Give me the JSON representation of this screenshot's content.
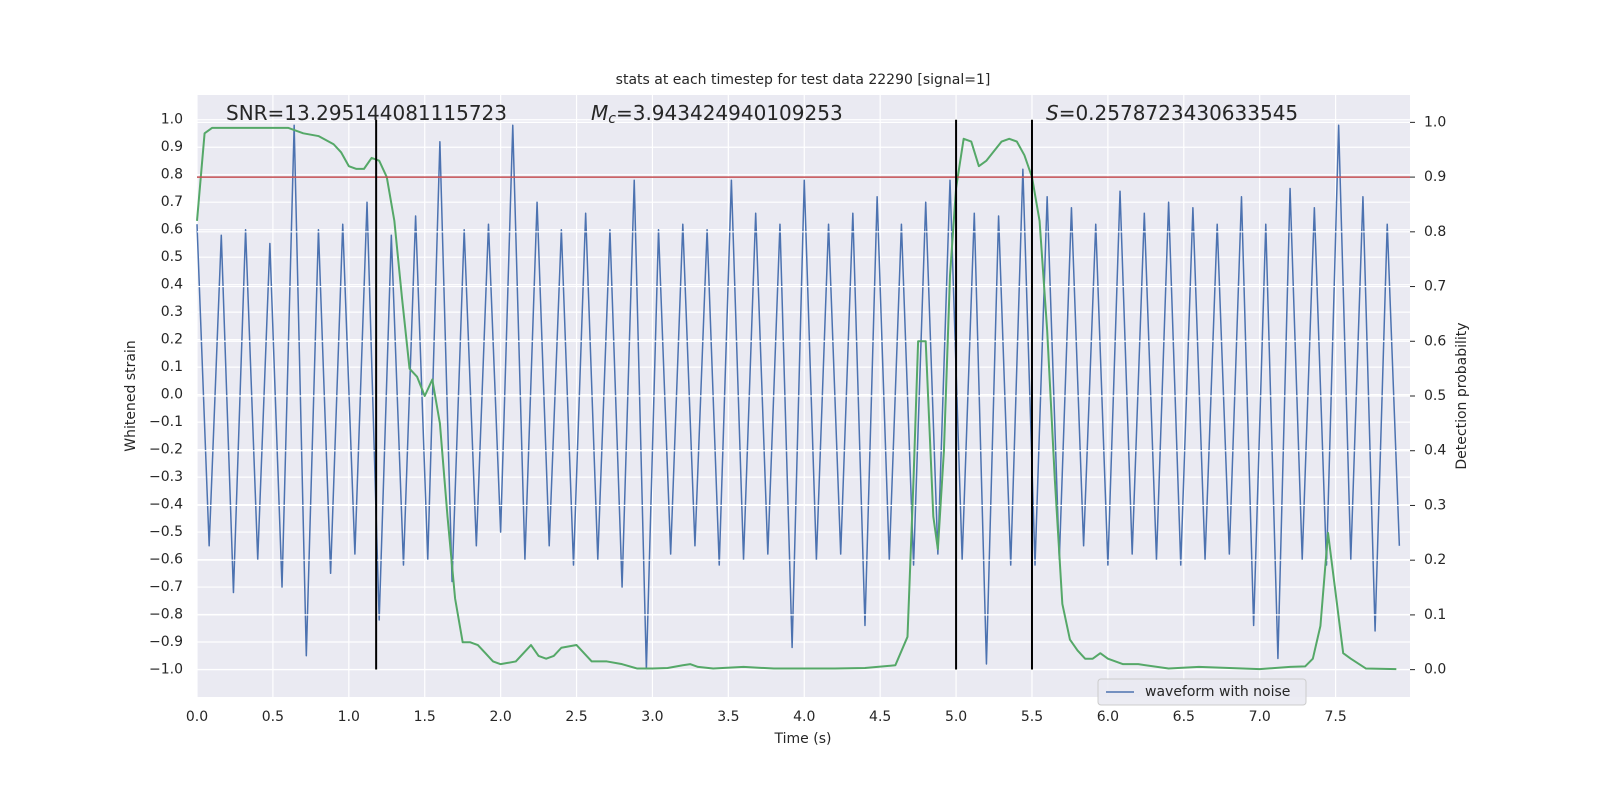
{
  "chart_data": {
    "type": "line",
    "title": "stats at each timestep for test data 22290 [signal=1]",
    "xlabel": "Time (s)",
    "ylabel": "Whitened strain",
    "y2label": "Detection probability",
    "xlim": [
      0,
      7.99
    ],
    "ylim": [
      -1.1,
      1.09
    ],
    "y2lim": [
      -0.05,
      1.05
    ],
    "xticks": [
      {
        "value": 0,
        "label": "0.0"
      },
      0.5,
      {
        "value": 1,
        "label": "1.0"
      },
      1.5,
      {
        "value": 2,
        "label": "2.0"
      },
      2.5,
      {
        "value": 3,
        "label": "3.0"
      },
      3.5,
      {
        "value": 4,
        "label": "4.0"
      },
      4.5,
      {
        "value": 5,
        "label": "5.0"
      },
      5.5,
      {
        "value": 6,
        "label": "6.0"
      },
      6.5,
      {
        "value": 7,
        "label": "7.0"
      },
      7.5
    ],
    "yticks": [
      {
        "value": -1,
        "label": "−1.0"
      },
      {
        "value": -0.9,
        "label": "−0.9"
      },
      {
        "value": -0.8,
        "label": "−0.8"
      },
      {
        "value": -0.7,
        "label": "−0.7"
      },
      {
        "value": -0.6,
        "label": "−0.6"
      },
      {
        "value": -0.5,
        "label": "−0.5"
      },
      {
        "value": -0.4,
        "label": "−0.4"
      },
      {
        "value": -0.3,
        "label": "−0.3"
      },
      {
        "value": -0.2,
        "label": "−0.2"
      },
      {
        "value": -0.1,
        "label": "−0.1"
      },
      {
        "value": 0,
        "label": "0.0"
      },
      0.1,
      0.2,
      0.3,
      0.4,
      0.5,
      0.6,
      0.7,
      0.8,
      0.9,
      {
        "value": 1,
        "label": "1.0"
      }
    ],
    "y2ticks": [
      {
        "value": 0,
        "label": "0.0"
      },
      0.1,
      0.2,
      0.3,
      0.4,
      0.5,
      0.6,
      0.7,
      0.8,
      0.9,
      {
        "value": 1,
        "label": "1.0"
      }
    ],
    "grid": true,
    "legend": "lower right",
    "series": [
      {
        "name": "waveform with noise",
        "color": "#4c72b0",
        "x": [
          0,
          0.08,
          0.16,
          0.24,
          0.32,
          0.4,
          0.48,
          0.56,
          0.64,
          0.72,
          0.8,
          0.88,
          0.96,
          1.04,
          1.12,
          1.2,
          1.28,
          1.36,
          1.44,
          1.52,
          1.6,
          1.68,
          1.76,
          1.84,
          1.92,
          2,
          2.08,
          2.16,
          2.24,
          2.32,
          2.4,
          2.48,
          2.56,
          2.64,
          2.72,
          2.8,
          2.88,
          2.96,
          3.04,
          3.12,
          3.2,
          3.28,
          3.36,
          3.44,
          3.52,
          3.6,
          3.68,
          3.76,
          3.84,
          3.92,
          4,
          4.08,
          4.16,
          4.24,
          4.32,
          4.4,
          4.48,
          4.56,
          4.64,
          4.72,
          4.8,
          4.88,
          4.96,
          5.04,
          5.12,
          5.2,
          5.28,
          5.36,
          5.44,
          5.52,
          5.6,
          5.68,
          5.76,
          5.84,
          5.92,
          6,
          6.08,
          6.16,
          6.24,
          6.32,
          6.4,
          6.48,
          6.56,
          6.64,
          6.72,
          6.8,
          6.88,
          6.96,
          7.04,
          7.12,
          7.2,
          7.28,
          7.36,
          7.44,
          7.52,
          7.6,
          7.68,
          7.76,
          7.84,
          7.92
        ],
        "values": [
          0.62,
          -0.55,
          0.58,
          -0.72,
          0.6,
          -0.6,
          0.55,
          -0.7,
          0.98,
          -0.95,
          0.6,
          -0.65,
          0.62,
          -0.58,
          0.7,
          -0.82,
          0.58,
          -0.62,
          0.65,
          -0.6,
          0.92,
          -0.68,
          0.6,
          -0.55,
          0.62,
          -0.5,
          0.98,
          -0.6,
          0.7,
          -0.55,
          0.6,
          -0.62,
          0.66,
          -0.6,
          0.6,
          -0.7,
          0.78,
          -1.0,
          0.6,
          -0.58,
          0.62,
          -0.55,
          0.6,
          -0.62,
          0.78,
          -0.6,
          0.66,
          -0.58,
          0.62,
          -0.92,
          0.78,
          -0.6,
          0.62,
          -0.58,
          0.66,
          -0.84,
          0.72,
          -0.6,
          0.62,
          -0.62,
          0.7,
          -0.58,
          0.78,
          -0.6,
          0.66,
          -0.98,
          0.65,
          -0.62,
          0.82,
          -0.62,
          0.72,
          -0.6,
          0.68,
          -0.55,
          0.62,
          -0.62,
          0.74,
          -0.58,
          0.66,
          -0.6,
          0.7,
          -0.62,
          0.68,
          -0.6,
          0.62,
          -0.58,
          0.72,
          -0.84,
          0.62,
          -0.96,
          0.75,
          -0.6,
          0.68,
          -0.62,
          0.98,
          -0.6,
          0.72,
          -0.86,
          0.62,
          -0.55
        ]
      },
      {
        "color": "#55a868",
        "axis": "y2",
        "x": [
          0,
          0.05,
          0.1,
          0.2,
          0.3,
          0.4,
          0.5,
          0.6,
          0.7,
          0.8,
          0.9,
          0.95,
          1.0,
          1.05,
          1.1,
          1.15,
          1.2,
          1.25,
          1.3,
          1.35,
          1.4,
          1.45,
          1.5,
          1.55,
          1.6,
          1.65,
          1.7,
          1.75,
          1.8,
          1.85,
          1.9,
          1.95,
          2.0,
          2.1,
          2.2,
          2.25,
          2.3,
          2.35,
          2.4,
          2.5,
          2.6,
          2.7,
          2.8,
          2.9,
          3.0,
          3.1,
          3.2,
          3.25,
          3.3,
          3.4,
          3.6,
          3.8,
          4.0,
          4.2,
          4.4,
          4.6,
          4.68,
          4.72,
          4.75,
          4.8,
          4.85,
          4.88,
          4.92,
          4.96,
          5.0,
          5.05,
          5.1,
          5.15,
          5.2,
          5.3,
          5.35,
          5.4,
          5.45,
          5.5,
          5.55,
          5.6,
          5.65,
          5.7,
          5.75,
          5.8,
          5.85,
          5.9,
          5.95,
          6.0,
          6.05,
          6.1,
          6.2,
          6.4,
          6.6,
          6.8,
          7.0,
          7.2,
          7.3,
          7.35,
          7.4,
          7.45,
          7.5,
          7.55,
          7.6,
          7.7,
          7.9
        ],
        "values": [
          0.82,
          0.98,
          0.99,
          0.99,
          0.99,
          0.99,
          0.99,
          0.99,
          0.98,
          0.975,
          0.96,
          0.945,
          0.92,
          0.915,
          0.915,
          0.935,
          0.93,
          0.9,
          0.82,
          0.68,
          0.55,
          0.535,
          0.5,
          0.53,
          0.45,
          0.28,
          0.13,
          0.05,
          0.05,
          0.045,
          0.03,
          0.015,
          0.01,
          0.015,
          0.045,
          0.025,
          0.02,
          0.025,
          0.04,
          0.045,
          0.015,
          0.015,
          0.01,
          0.002,
          0.002,
          0.003,
          0.008,
          0.01,
          0.005,
          0.002,
          0.005,
          0.002,
          0.002,
          0.002,
          0.003,
          0.008,
          0.06,
          0.35,
          0.6,
          0.6,
          0.28,
          0.22,
          0.4,
          0.72,
          0.88,
          0.97,
          0.965,
          0.92,
          0.93,
          0.965,
          0.97,
          0.965,
          0.94,
          0.9,
          0.82,
          0.62,
          0.35,
          0.12,
          0.055,
          0.035,
          0.02,
          0.02,
          0.03,
          0.02,
          0.015,
          0.01,
          0.01,
          0.002,
          0.005,
          0.003,
          0.001,
          0.005,
          0.006,
          0.02,
          0.08,
          0.25,
          0.14,
          0.03,
          0.02,
          0.002,
          0.001
        ]
      }
    ],
    "threshold": {
      "value": 0.9,
      "axis": "y2",
      "color": "#c44e52"
    },
    "vlines": {
      "x": [
        1.18,
        5.0,
        5.5
      ],
      "ymin": -1.0,
      "ymax": 1.0,
      "color": "#000000"
    },
    "annotations": [
      {
        "text": "SNR=13.295144081115723"
      },
      {
        "symbol": "M",
        "subscript": "c",
        "text": "=3.943424940109253"
      },
      {
        "symbol": "S",
        "text": "=0.2578723430633545"
      }
    ]
  }
}
